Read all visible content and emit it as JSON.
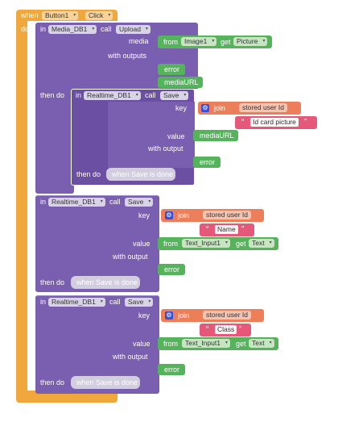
{
  "event": {
    "when": "when",
    "component": "Button1",
    "event_name": "Click",
    "do": "do"
  },
  "upload_call": {
    "in": "in",
    "component": "Media_DB1",
    "call": "call",
    "method": "Upload",
    "media_label": "media",
    "media_from": "from",
    "media_component": "Image1",
    "media_get": "get",
    "media_property": "Picture",
    "with_outputs": "with outputs",
    "output1": "error",
    "output2": "mediaURL",
    "then_do": "then do"
  },
  "save1": {
    "in": "in",
    "component": "Realtime_DB1",
    "call": "call",
    "method": "Save",
    "key_label": "key",
    "join": "join",
    "join_arg1": "stored user Id",
    "join_arg2": "Id card picture",
    "value_label": "value",
    "value": "mediaURL",
    "with_output": "with output",
    "output": "error",
    "then_do": "then do",
    "then_event": "when Save is done"
  },
  "save2": {
    "in": "in",
    "component": "Realtime_DB1",
    "call": "call",
    "method": "Save",
    "key_label": "key",
    "join": "join",
    "join_arg1": "stored user Id",
    "join_arg2": "Name",
    "value_label": "value",
    "value_from": "from",
    "value_component": "Text_Input1",
    "value_get": "get",
    "value_property": "Text",
    "with_output": "with output",
    "output": "error",
    "then_do": "then do",
    "then_event": "when Save is done"
  },
  "save3": {
    "in": "in",
    "component": "Realtime_DB1",
    "call": "call",
    "method": "Save",
    "key_label": "key",
    "join": "join",
    "join_arg1": "stored user Id",
    "join_arg2": "Class",
    "value_label": "value",
    "value_from": "from",
    "value_component": "Text_Input1",
    "value_get": "get",
    "value_property": "Text",
    "with_output": "with output",
    "output": "error",
    "then_do": "then do",
    "then_event": "when Save is done"
  },
  "icons": {
    "dropdown": "▾",
    "gear": "⚙",
    "open_quote": "“",
    "close_quote": "”"
  },
  "colors": {
    "event": "#f0a73c",
    "procedure": "#7a5fb0",
    "component_get": "#55b35c",
    "text_join": "#ec7f5a",
    "text_string": "#e5587a"
  }
}
